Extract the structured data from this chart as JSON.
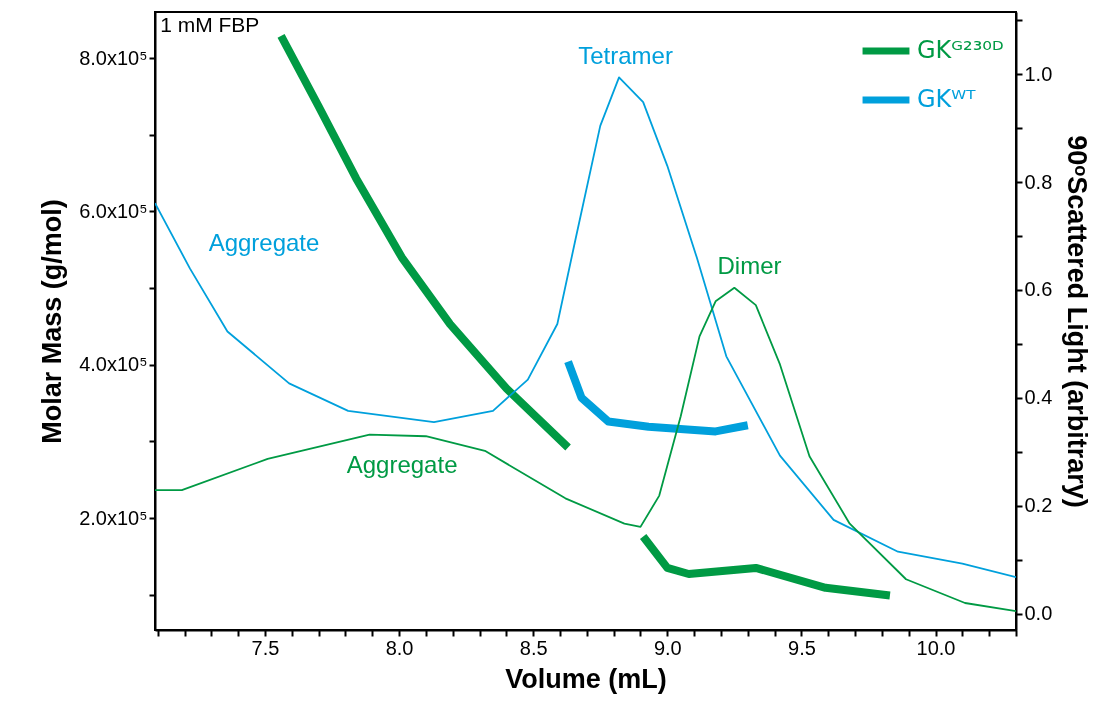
{
  "chart_data": {
    "type": "line",
    "xlabel": "Volume (mL)",
    "ylabel": "Molar Mass (g/mol)",
    "y2label": "90ᵒScattered Light (arbitrary)",
    "xlim": [
      7.09,
      10.3
    ],
    "ylim": [
      54000,
      860000
    ],
    "y2lim": [
      -0.03,
      1.115
    ],
    "xticks": [
      {
        "value": 7.1,
        "label": null
      },
      {
        "value": 7.2,
        "label": null
      },
      {
        "value": 7.3,
        "label": null
      },
      {
        "value": 7.4,
        "label": null
      },
      7.5,
      {
        "value": 7.6,
        "label": null
      },
      {
        "value": 7.7,
        "label": null
      },
      {
        "value": 7.8,
        "label": null
      },
      {
        "value": 7.9,
        "label": null
      },
      {
        "value": 8,
        "label": "8.0"
      },
      {
        "value": 8.1,
        "label": null
      },
      {
        "value": 8.2,
        "label": null
      },
      {
        "value": 8.3,
        "label": null
      },
      {
        "value": 8.4,
        "label": null
      },
      8.5,
      {
        "value": 8.6,
        "label": null
      },
      {
        "value": 8.7,
        "label": null
      },
      {
        "value": 8.8,
        "label": null
      },
      {
        "value": 8.9,
        "label": null
      },
      {
        "value": 9,
        "label": "9.0"
      },
      {
        "value": 9.1,
        "label": null
      },
      {
        "value": 9.2,
        "label": null
      },
      {
        "value": 9.3,
        "label": null
      },
      {
        "value": 9.4,
        "label": null
      },
      9.5,
      {
        "value": 9.6,
        "label": null
      },
      {
        "value": 9.7,
        "label": null
      },
      {
        "value": 9.8,
        "label": null
      },
      {
        "value": 9.9,
        "label": null
      },
      {
        "value": 10,
        "label": "10.0"
      },
      {
        "value": 10.1,
        "label": null
      },
      {
        "value": 10.2,
        "label": null
      },
      {
        "value": 10.3,
        "label": null
      }
    ],
    "yticks": [
      {
        "value": 100000,
        "label": null
      },
      {
        "value": 200000,
        "label": "2.0x10⁵"
      },
      {
        "value": 300000,
        "label": null
      },
      {
        "value": 400000,
        "label": "4.0x10⁵"
      },
      {
        "value": 500000,
        "label": null
      },
      {
        "value": 600000,
        "label": "6.0x10⁵"
      },
      {
        "value": 700000,
        "label": null
      },
      {
        "value": 800000,
        "label": "8.0x10⁵"
      }
    ],
    "y2ticks": [
      {
        "value": 0,
        "label": "0.0"
      },
      {
        "value": 0.1,
        "label": null
      },
      0.2,
      {
        "value": 0.3,
        "label": null
      },
      0.4,
      {
        "value": 0.5,
        "label": null
      },
      0.6,
      {
        "value": 0.7,
        "label": null
      },
      0.8,
      {
        "value": 0.9,
        "label": null
      },
      {
        "value": 1,
        "label": "1.0"
      },
      {
        "value": 1.1,
        "label": null
      }
    ],
    "legend": "top right",
    "marker": "none",
    "line_style": "solid",
    "series": [
      {
        "name": "GKᴳ²³⁰ᴰ",
        "color": "#009a44",
        "x": [
          7.56,
          7.7,
          7.84,
          8.01,
          8.19,
          8.4,
          8.63,
          8.77,
          8.91,
          9.0,
          9.08,
          9.33,
          9.59,
          9.83
        ],
        "values": [
          829000,
          737000,
          643000,
          540000,
          453000,
          369000,
          292000,
          null,
          176000,
          135000,
          127000,
          135000,
          109000,
          99000
        ]
      },
      {
        "name": "GKᵂᵀ",
        "color": "#00a0dc",
        "x": [
          8.63,
          8.68,
          8.78,
          8.93,
          9.18,
          9.3
        ],
        "values": [
          404000,
          357000,
          326000,
          319000,
          313000,
          321000
        ]
      },
      {
        "color": "#00a0dc",
        "axis": "y2",
        "x": [
          7.09,
          7.22,
          7.36,
          7.59,
          7.81,
          8.13,
          8.35,
          8.48,
          8.59,
          8.66,
          8.75,
          8.82,
          8.91,
          9.0,
          9.11,
          9.22,
          9.42,
          9.62,
          9.86,
          10.1,
          10.3
        ],
        "values": [
          0.761,
          0.64,
          0.523,
          0.427,
          0.376,
          0.355,
          0.376,
          0.434,
          0.537,
          0.699,
          0.904,
          0.994,
          0.948,
          0.83,
          0.66,
          0.477,
          0.293,
          0.174,
          0.115,
          0.093,
          0.068
        ]
      },
      {
        "color": "#009a44",
        "axis": "y2",
        "x": [
          7.09,
          7.19,
          7.51,
          7.89,
          8.1,
          8.32,
          8.62,
          8.84,
          8.9,
          8.97,
          9.05,
          9.12,
          9.18,
          9.25,
          9.33,
          9.42,
          9.53,
          9.68,
          9.89,
          10.11,
          10.3
        ],
        "values": [
          0.229,
          0.229,
          0.287,
          0.332,
          0.329,
          0.302,
          0.214,
          0.167,
          0.161,
          0.219,
          0.366,
          0.514,
          0.579,
          0.604,
          0.572,
          0.462,
          0.292,
          0.167,
          0.064,
          0.02,
          0.005
        ]
      }
    ],
    "annotations": [
      "1 mM FBP",
      "Aggregate",
      "Tetramer",
      "Aggregate",
      "Dimer"
    ]
  }
}
